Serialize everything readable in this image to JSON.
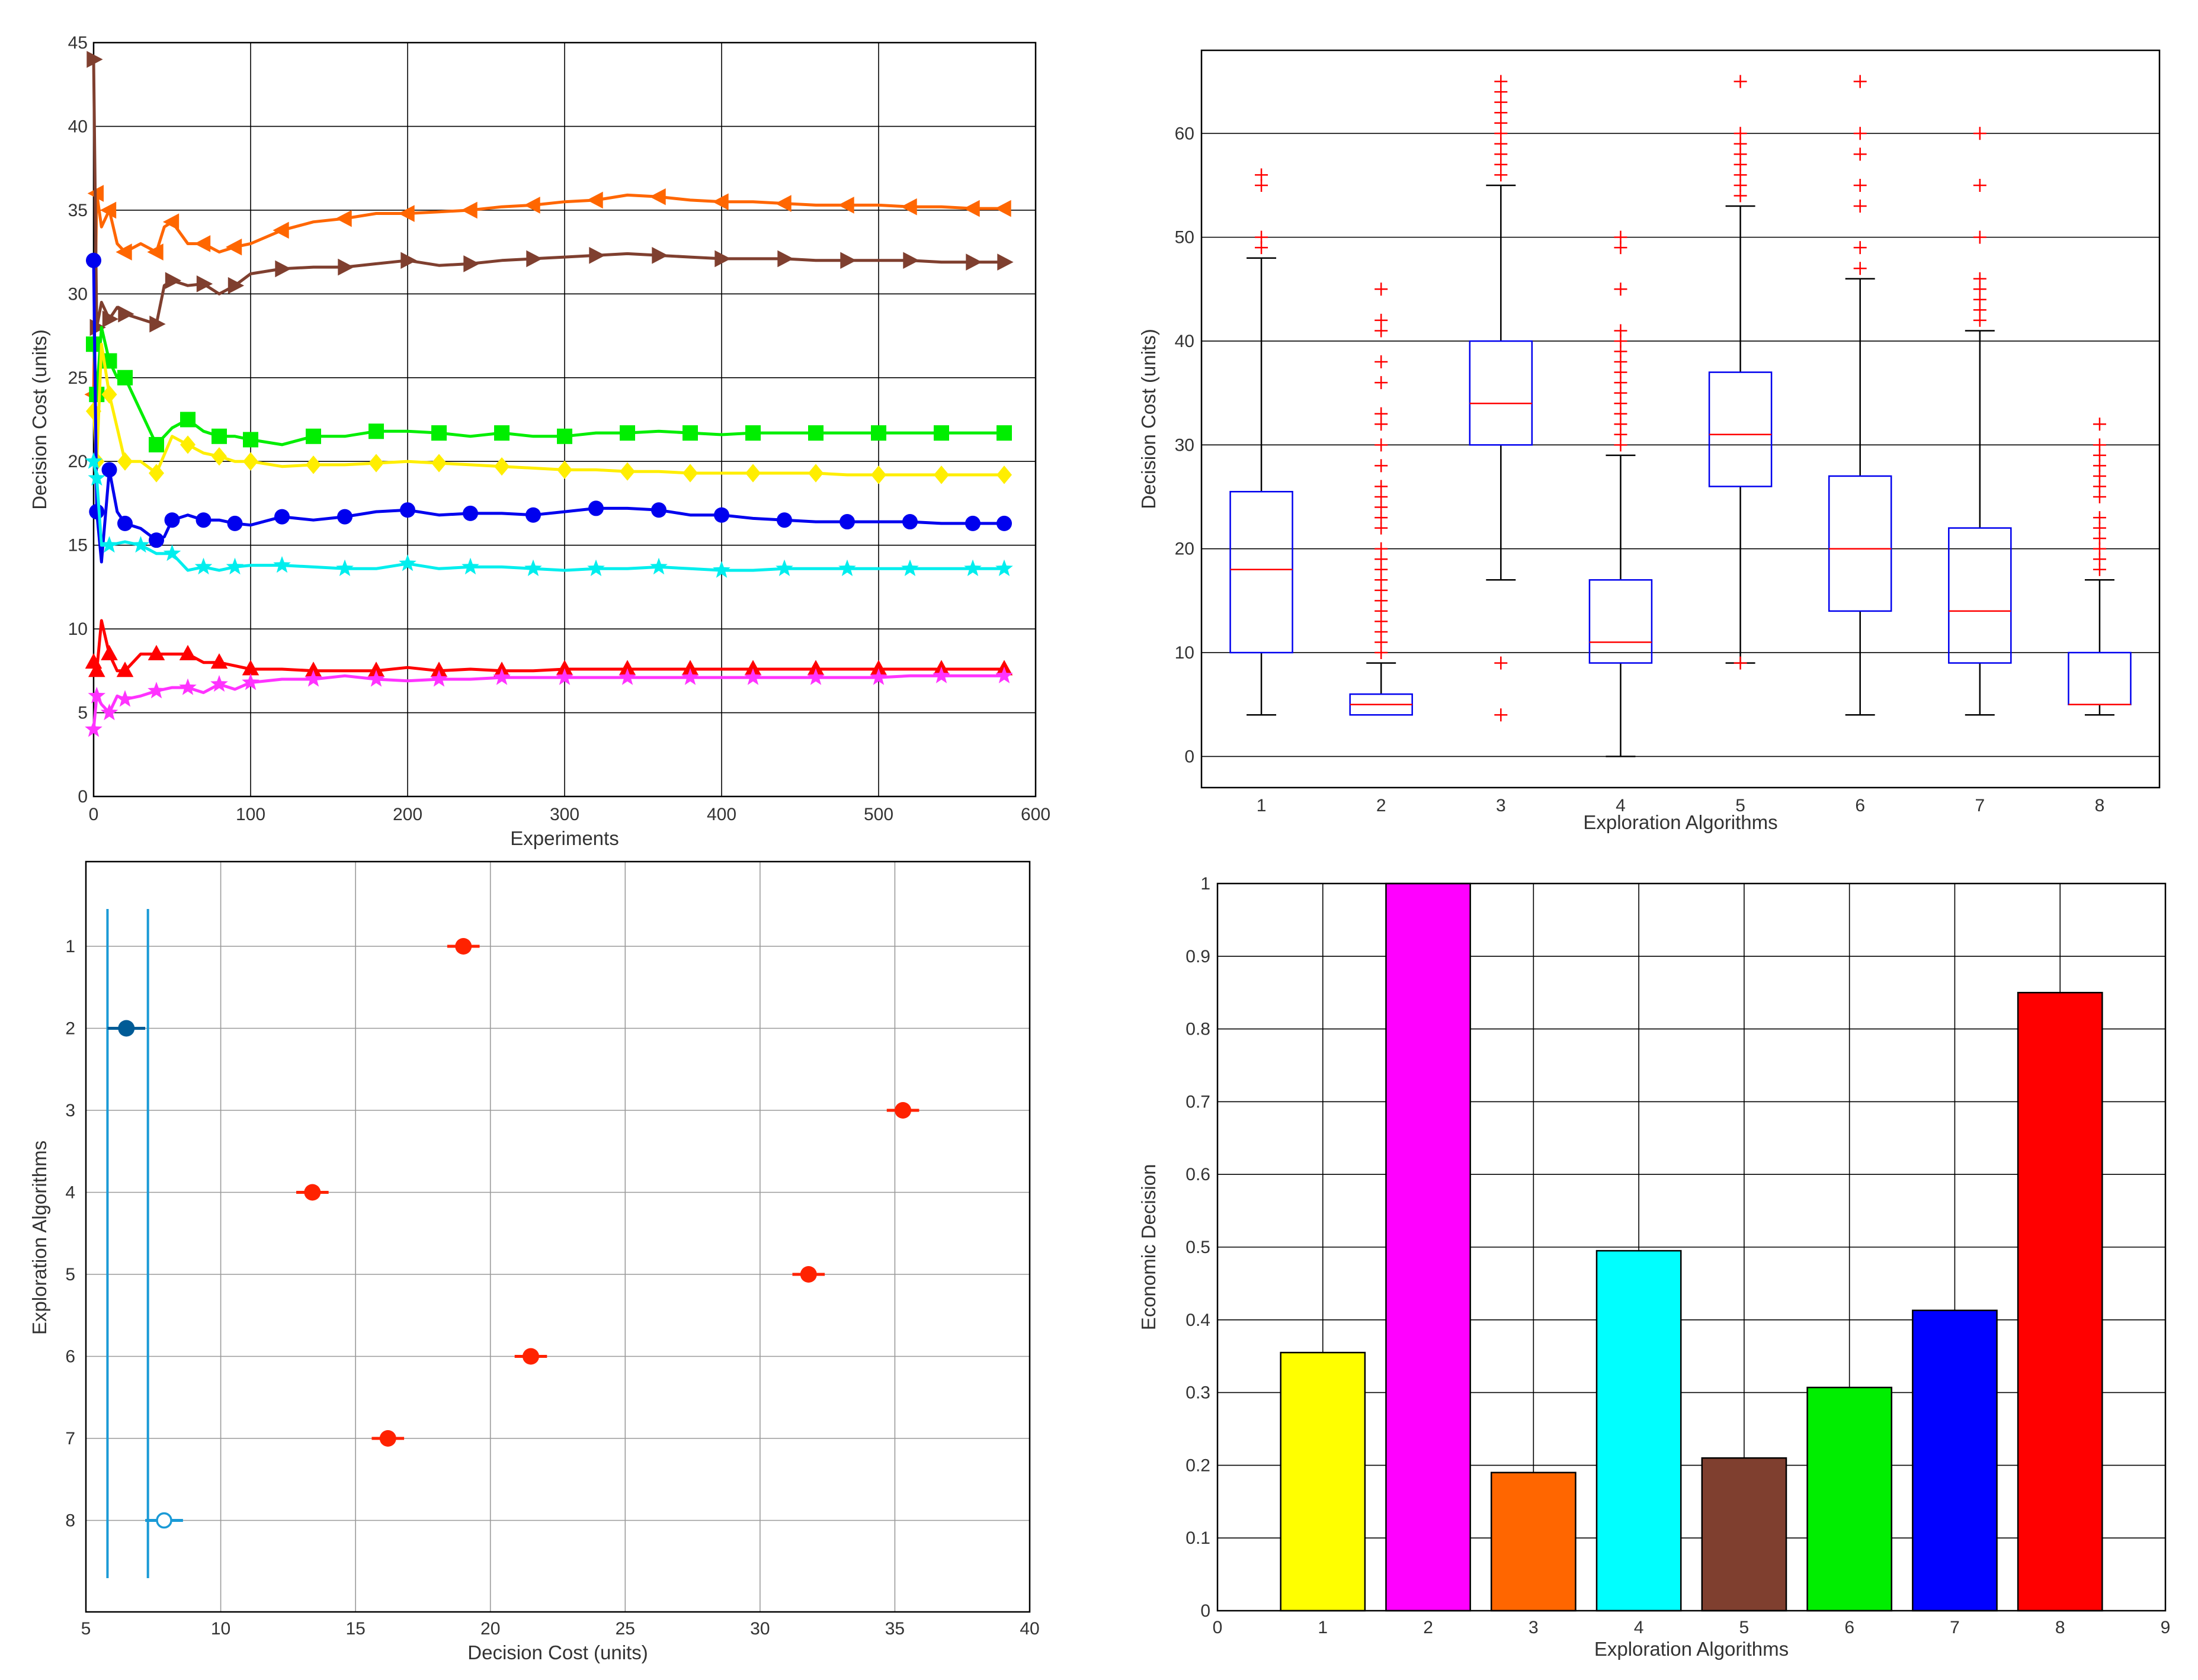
{
  "chart_data": [
    {
      "type": "line",
      "xlabel": "Experiments",
      "ylabel": "Decision Cost (units)",
      "xlim": [
        0,
        600
      ],
      "ylim": [
        0,
        45
      ],
      "xticks": [
        0,
        100,
        200,
        300,
        400,
        500,
        600
      ],
      "yticks": [
        0,
        5,
        10,
        15,
        20,
        25,
        30,
        35,
        40,
        45
      ],
      "grid": true,
      "series": [
        {
          "name": "orange",
          "color": "#ff6600",
          "marker": "triangle-left",
          "x": [
            0,
            2,
            5,
            10,
            15,
            20,
            30,
            40,
            45,
            50,
            60,
            70,
            80,
            90,
            100,
            120,
            140,
            160,
            180,
            200,
            220,
            240,
            260,
            280,
            300,
            320,
            340,
            360,
            380,
            400,
            420,
            440,
            460,
            480,
            500,
            520,
            540,
            560,
            580
          ],
          "y": [
            24,
            36,
            34,
            35,
            33,
            32.5,
            33,
            32.5,
            34,
            34.3,
            33,
            33,
            32.5,
            32.8,
            33,
            33.8,
            34.3,
            34.5,
            34.8,
            34.8,
            34.9,
            35,
            35.2,
            35.3,
            35.5,
            35.6,
            35.9,
            35.8,
            35.6,
            35.5,
            35.5,
            35.4,
            35.3,
            35.3,
            35.3,
            35.2,
            35.2,
            35.1,
            35.1
          ]
        },
        {
          "name": "brown",
          "color": "#7f3f2f",
          "marker": "triangle-right",
          "x": [
            0,
            2,
            5,
            10,
            15,
            20,
            30,
            40,
            45,
            50,
            60,
            70,
            80,
            90,
            100,
            120,
            140,
            160,
            180,
            200,
            220,
            240,
            260,
            280,
            300,
            320,
            340,
            360,
            380,
            400,
            420,
            440,
            460,
            480,
            500,
            520,
            540,
            560,
            580
          ],
          "y": [
            44,
            28,
            29.5,
            28.5,
            29.2,
            28.8,
            28.5,
            28.2,
            30.5,
            30.8,
            30.5,
            30.6,
            30,
            30.5,
            31.2,
            31.5,
            31.6,
            31.6,
            31.8,
            32,
            31.7,
            31.8,
            32,
            32.1,
            32.2,
            32.3,
            32.4,
            32.3,
            32.2,
            32.1,
            32.1,
            32.1,
            32,
            32,
            32,
            32,
            31.9,
            31.9,
            31.9
          ]
        },
        {
          "name": "green",
          "color": "#00ee00",
          "marker": "square",
          "x": [
            0,
            2,
            5,
            10,
            15,
            20,
            30,
            40,
            50,
            60,
            70,
            80,
            90,
            100,
            120,
            140,
            160,
            180,
            200,
            220,
            240,
            260,
            280,
            300,
            320,
            340,
            360,
            380,
            400,
            420,
            440,
            460,
            480,
            500,
            520,
            540,
            560,
            580
          ],
          "y": [
            27,
            24,
            28,
            26,
            25,
            25,
            23,
            21,
            22,
            22.5,
            21.8,
            21.5,
            21.5,
            21.3,
            21,
            21.5,
            21.5,
            21.8,
            21.8,
            21.7,
            21.5,
            21.7,
            21.5,
            21.5,
            21.7,
            21.7,
            21.8,
            21.7,
            21.6,
            21.7,
            21.7,
            21.7,
            21.7,
            21.7,
            21.7,
            21.7,
            21.7,
            21.7
          ]
        },
        {
          "name": "yellow",
          "color": "#ffee00",
          "marker": "diamond",
          "x": [
            0,
            2,
            5,
            10,
            15,
            20,
            30,
            40,
            50,
            60,
            70,
            80,
            90,
            100,
            120,
            140,
            160,
            180,
            200,
            220,
            240,
            260,
            280,
            300,
            320,
            340,
            360,
            380,
            400,
            420,
            440,
            460,
            480,
            500,
            520,
            540,
            560,
            580
          ],
          "y": [
            23,
            20,
            27,
            24,
            22,
            20,
            20,
            19.3,
            21.5,
            21,
            20.5,
            20.3,
            20,
            20,
            19.7,
            19.8,
            19.8,
            19.9,
            20,
            19.9,
            19.8,
            19.7,
            19.6,
            19.5,
            19.5,
            19.4,
            19.4,
            19.3,
            19.3,
            19.3,
            19.3,
            19.3,
            19.2,
            19.2,
            19.2,
            19.2,
            19.2,
            19.2
          ]
        },
        {
          "name": "blue",
          "color": "#0000ee",
          "marker": "circle",
          "x": [
            0,
            2,
            5,
            10,
            15,
            20,
            30,
            40,
            45,
            50,
            60,
            70,
            80,
            90,
            100,
            120,
            140,
            160,
            180,
            200,
            220,
            240,
            260,
            280,
            300,
            320,
            340,
            360,
            380,
            400,
            420,
            440,
            460,
            480,
            500,
            520,
            540,
            560,
            580
          ],
          "y": [
            32,
            17,
            14,
            19.5,
            17,
            16.3,
            16,
            15.3,
            15.5,
            16.5,
            16.8,
            16.5,
            16.5,
            16.3,
            16.2,
            16.7,
            16.5,
            16.7,
            17,
            17.1,
            16.8,
            16.9,
            16.9,
            16.8,
            17,
            17.2,
            17.2,
            17.1,
            16.8,
            16.8,
            16.6,
            16.5,
            16.4,
            16.4,
            16.4,
            16.4,
            16.3,
            16.3,
            16.3
          ]
        },
        {
          "name": "cyan",
          "color": "#00eeee",
          "marker": "star",
          "x": [
            0,
            2,
            5,
            10,
            20,
            30,
            40,
            50,
            60,
            70,
            80,
            90,
            100,
            120,
            140,
            160,
            180,
            200,
            220,
            240,
            260,
            280,
            300,
            320,
            340,
            360,
            380,
            400,
            420,
            440,
            460,
            480,
            500,
            520,
            540,
            560,
            580
          ],
          "y": [
            20,
            19,
            15,
            15,
            15.2,
            15,
            14.5,
            14.5,
            13.5,
            13.7,
            13.5,
            13.7,
            13.8,
            13.8,
            13.7,
            13.6,
            13.6,
            13.9,
            13.6,
            13.7,
            13.7,
            13.6,
            13.5,
            13.6,
            13.6,
            13.7,
            13.6,
            13.5,
            13.5,
            13.6,
            13.6,
            13.6,
            13.6,
            13.6,
            13.6,
            13.6,
            13.6
          ]
        },
        {
          "name": "red",
          "color": "#ff0000",
          "marker": "triangle-up",
          "x": [
            0,
            2,
            5,
            10,
            15,
            20,
            30,
            40,
            50,
            60,
            70,
            80,
            90,
            100,
            120,
            140,
            160,
            180,
            200,
            220,
            240,
            260,
            280,
            300,
            320,
            340,
            360,
            380,
            400,
            420,
            440,
            460,
            480,
            500,
            520,
            540,
            560,
            580
          ],
          "y": [
            8,
            7.5,
            10.5,
            8.5,
            7.5,
            7.5,
            8.5,
            8.5,
            8.5,
            8.5,
            8,
            8,
            7.8,
            7.6,
            7.6,
            7.5,
            7.5,
            7.5,
            7.7,
            7.5,
            7.6,
            7.5,
            7.5,
            7.6,
            7.6,
            7.6,
            7.6,
            7.6,
            7.6,
            7.6,
            7.6,
            7.6,
            7.6,
            7.6,
            7.6,
            7.6,
            7.6,
            7.6
          ]
        },
        {
          "name": "magenta",
          "color": "#ff33ff",
          "marker": "star",
          "x": [
            0,
            2,
            5,
            10,
            15,
            20,
            30,
            40,
            50,
            60,
            70,
            80,
            90,
            100,
            120,
            140,
            160,
            180,
            200,
            220,
            240,
            260,
            280,
            300,
            320,
            340,
            360,
            380,
            400,
            420,
            440,
            460,
            480,
            500,
            520,
            540,
            560,
            580
          ],
          "y": [
            4,
            6,
            5.5,
            5,
            6,
            5.8,
            6,
            6.3,
            6.5,
            6.5,
            6.2,
            6.7,
            6.4,
            6.8,
            7,
            7,
            7.2,
            7,
            6.9,
            7,
            7,
            7.1,
            7.1,
            7.1,
            7.1,
            7.1,
            7.1,
            7.1,
            7.1,
            7.1,
            7.1,
            7.1,
            7.1,
            7.1,
            7.2,
            7.2,
            7.2,
            7.2
          ]
        }
      ]
    },
    {
      "type": "box",
      "xlabel": "Exploration Algorithms",
      "ylabel": "Decision Cost (units)",
      "ylim": [
        -3,
        68
      ],
      "yticks": [
        0,
        10,
        20,
        30,
        40,
        50,
        60
      ],
      "categories": [
        "1",
        "2",
        "3",
        "4",
        "5",
        "6",
        "7",
        "8"
      ],
      "box_color": "#0000ee",
      "median_color": "#ff0000",
      "outlier_color": "#ff0000",
      "boxes": [
        {
          "min": 4,
          "q1": 10,
          "median": 18,
          "q3": 25.5,
          "max": 48,
          "outliers": [
            49,
            50,
            55,
            56
          ]
        },
        {
          "min": 4,
          "q1": 4,
          "median": 5,
          "q3": 6,
          "max": 9,
          "outliers": [
            10,
            11,
            12,
            13,
            14,
            15,
            16,
            17,
            18,
            19,
            20,
            22,
            23,
            24,
            25,
            26,
            28,
            30,
            32,
            33,
            36,
            38,
            41,
            42,
            45
          ]
        },
        {
          "min": 17,
          "q1": 30,
          "median": 34,
          "q3": 40,
          "max": 55,
          "outliers": [
            4,
            9,
            56,
            57,
            58,
            59,
            60,
            61,
            62,
            63,
            64,
            65
          ]
        },
        {
          "min": 0,
          "q1": 9,
          "median": 11,
          "q3": 17,
          "max": 29,
          "outliers": [
            30,
            31,
            32,
            33,
            34,
            35,
            36,
            37,
            38,
            39,
            40,
            41,
            45,
            49,
            50
          ]
        },
        {
          "min": 9,
          "q1": 26,
          "median": 31,
          "q3": 37,
          "max": 53,
          "outliers": [
            9,
            54,
            55,
            56,
            57,
            58,
            59,
            60,
            65
          ]
        },
        {
          "min": 4,
          "q1": 14,
          "median": 20,
          "q3": 27,
          "max": 46,
          "outliers": [
            47,
            49,
            53,
            55,
            58,
            60,
            65
          ]
        },
        {
          "min": 4,
          "q1": 9,
          "median": 14,
          "q3": 22,
          "max": 41,
          "outliers": [
            42,
            43,
            44,
            45,
            46,
            50,
            55,
            60
          ]
        },
        {
          "min": 4,
          "q1": 5,
          "median": 5,
          "q3": 10,
          "max": 17,
          "outliers": [
            18,
            19,
            20,
            21,
            22,
            23,
            25,
            26,
            27,
            28,
            29,
            30,
            32
          ]
        }
      ]
    },
    {
      "type": "scatter",
      "xlabel": "Decision Cost (units)",
      "ylabel": "Exploration Algorithms",
      "xlim": [
        5,
        40
      ],
      "xticks": [
        5,
        10,
        15,
        20,
        25,
        30,
        35,
        40
      ],
      "categories": [
        "1",
        "2",
        "3",
        "4",
        "5",
        "6",
        "7",
        "8"
      ],
      "points": [
        {
          "category": "1",
          "value": 19.0,
          "half_interval": 0.6,
          "color": "#ff2200",
          "style": "filled"
        },
        {
          "category": "2",
          "value": 6.5,
          "half_interval": 0.7,
          "color": "#005b96",
          "style": "filled"
        },
        {
          "category": "3",
          "value": 35.3,
          "half_interval": 0.6,
          "color": "#ff2200",
          "style": "filled"
        },
        {
          "category": "4",
          "value": 13.4,
          "half_interval": 0.6,
          "color": "#ff2200",
          "style": "filled"
        },
        {
          "category": "5",
          "value": 31.8,
          "half_interval": 0.6,
          "color": "#ff2200",
          "style": "filled"
        },
        {
          "category": "6",
          "value": 21.5,
          "half_interval": 0.6,
          "color": "#ff2200",
          "style": "filled"
        },
        {
          "category": "7",
          "value": 16.2,
          "half_interval": 0.6,
          "color": "#ff2200",
          "style": "filled"
        },
        {
          "category": "8",
          "value": 7.9,
          "half_interval": 0.7,
          "color": "#1a9ad6",
          "style": "open"
        }
      ],
      "reference_lines": [
        5.8,
        7.3
      ],
      "reference_color": "#1a9ad6"
    },
    {
      "type": "bar",
      "xlabel": "Exploration Algorithms",
      "ylabel": "Economic Decision",
      "xlim": [
        0,
        9
      ],
      "ylim": [
        0,
        1
      ],
      "xticks": [
        0,
        1,
        2,
        3,
        4,
        5,
        6,
        7,
        8,
        9
      ],
      "yticks": [
        "0",
        "0.1",
        "0.2",
        "0.3",
        "0.4",
        "0.5",
        "0.6",
        "0.7",
        "0.8",
        "0.9",
        "1"
      ],
      "categories": [
        "1",
        "2",
        "3",
        "4",
        "5",
        "6",
        "7",
        "8"
      ],
      "values": [
        0.355,
        1.0,
        0.19,
        0.495,
        0.21,
        0.307,
        0.413,
        0.85
      ],
      "colors": [
        "#ffff00",
        "#ff00ff",
        "#ff6600",
        "#00ffff",
        "#7f3f2f",
        "#00ee00",
        "#0000ff",
        "#ff0000"
      ]
    }
  ]
}
